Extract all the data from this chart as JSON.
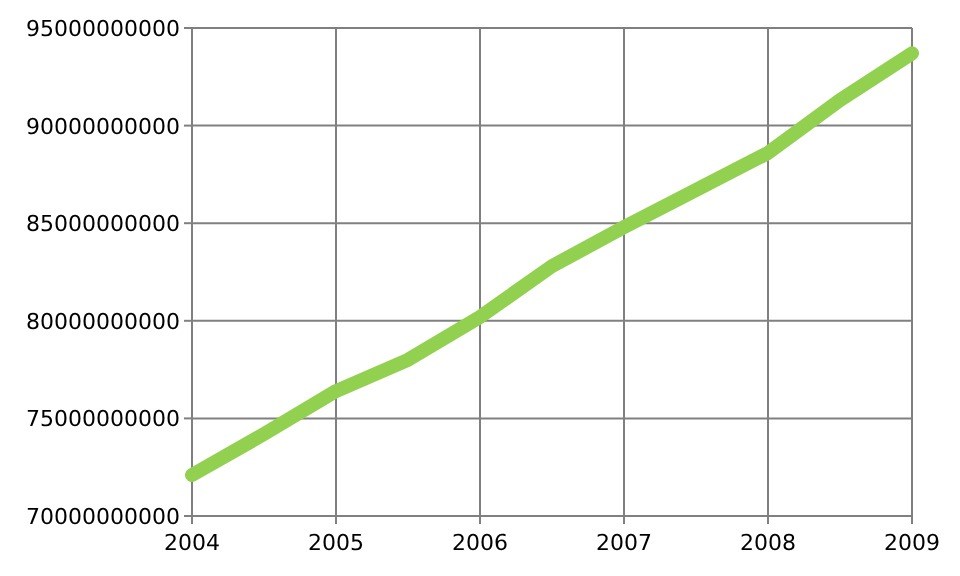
{
  "chart_data": {
    "type": "line",
    "x": [
      2004,
      2004.5,
      2005,
      2005.5,
      2006,
      2006.5,
      2007,
      2007.5,
      2008,
      2008.5,
      2009
    ],
    "series": [
      {
        "color": "#92d050",
        "values": [
          72100000000,
          74200000000,
          76400000000,
          78000000000,
          80200000000,
          82800000000,
          84800000000,
          86700000000,
          88600000000,
          91300000000,
          93700000000
        ]
      }
    ],
    "xlim": [
      2004,
      2009
    ],
    "xticks": [
      2004,
      2005,
      2006,
      2007,
      2008,
      2009
    ],
    "ylim": [
      70000000000,
      95000000000
    ],
    "yticks": [
      70000000000,
      75000000000,
      80000000000,
      85000000000,
      90000000000,
      95000000000
    ],
    "grid": true,
    "marker": "none",
    "line_style": "solid"
  }
}
